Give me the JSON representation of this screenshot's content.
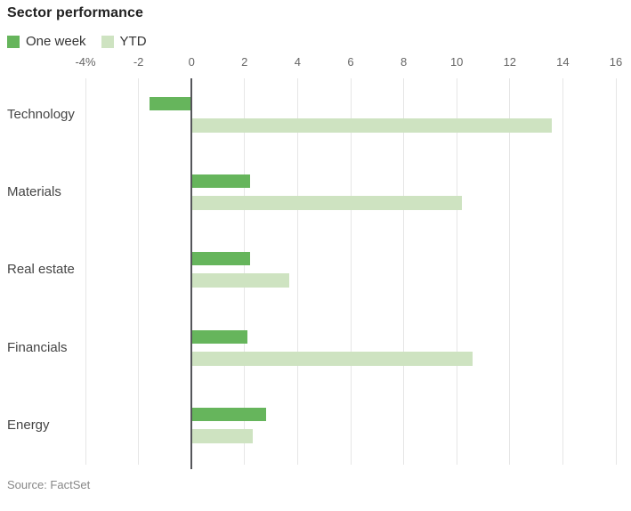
{
  "title": "Sector performance",
  "legend": [
    {
      "label": "One week",
      "color": "#66b55c"
    },
    {
      "label": "YTD",
      "color": "#cee3c1"
    }
  ],
  "source": "Source: FactSet",
  "chart_data": {
    "type": "bar",
    "orientation": "horizontal",
    "title": "Sector performance",
    "categories": [
      "Technology",
      "Materials",
      "Real estate",
      "Financials",
      "Energy"
    ],
    "series": [
      {
        "name": "One week",
        "color": "#66b55c",
        "values": [
          -1.6,
          2.2,
          2.2,
          2.1,
          2.8
        ]
      },
      {
        "name": "YTD",
        "color": "#cee3c1",
        "values": [
          13.6,
          10.2,
          3.7,
          10.6,
          2.3
        ]
      }
    ],
    "xlim": [
      -4,
      16
    ],
    "xticks": [
      -4,
      -2,
      0,
      2,
      4,
      6,
      8,
      10,
      12,
      14,
      16
    ],
    "xtick_labels": [
      "-4%",
      "-2",
      "0",
      "2",
      "4",
      "6",
      "8",
      "10",
      "12",
      "14",
      "16"
    ],
    "unit": "percent",
    "grid": true,
    "legend_position": "top-left",
    "source": "Source: FactSet"
  }
}
